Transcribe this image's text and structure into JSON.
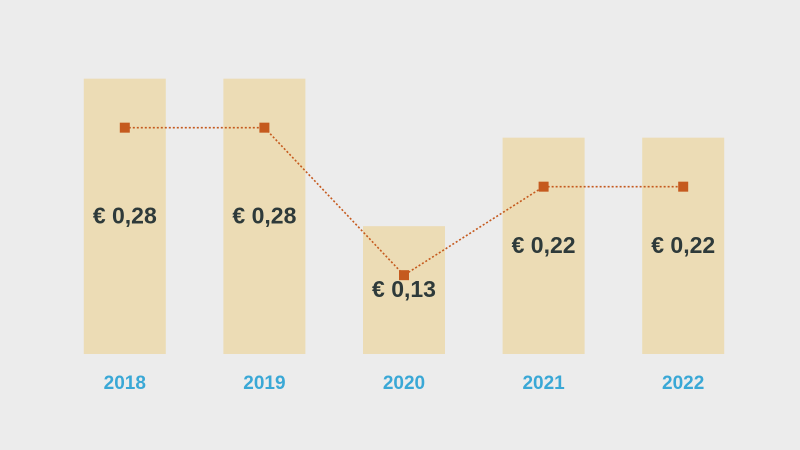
{
  "chart_data": {
    "type": "bar",
    "categories": [
      "2018",
      "2019",
      "2020",
      "2021",
      "2022"
    ],
    "values": [
      0.28,
      0.28,
      0.13,
      0.22,
      0.22
    ],
    "value_labels": [
      "€ 0,28",
      "€ 0,28",
      "€ 0,13",
      "€ 0,22",
      "€ 0,22"
    ],
    "color": "#ecdcb5",
    "line": true,
    "line_color": "#c55a1e",
    "ylim": [
      0,
      0.3
    ]
  }
}
